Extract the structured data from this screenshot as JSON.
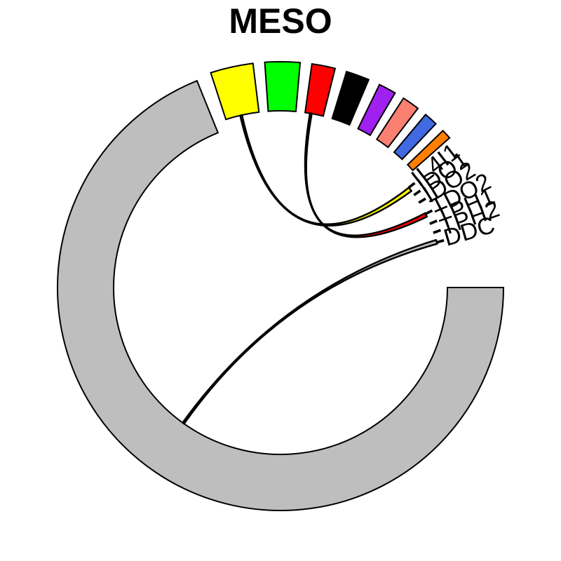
{
  "title": "MESO",
  "sectors": [
    {
      "name": "gray-main",
      "label": "",
      "color": "#BEBEBE"
    },
    {
      "name": "yellow",
      "label": "",
      "color": "#FFFF00"
    },
    {
      "name": "green",
      "label": "",
      "color": "#00FF00"
    },
    {
      "name": "red",
      "label": "",
      "color": "#FF0000"
    },
    {
      "name": "black",
      "label": "",
      "color": "#000000"
    },
    {
      "name": "purple",
      "label": "",
      "color": "#A020F0"
    },
    {
      "name": "salmon",
      "label": "",
      "color": "#FA8072"
    },
    {
      "name": "blue",
      "label": "",
      "color": "#4169E1"
    },
    {
      "name": "orange",
      "label": "",
      "color": "#FF7F00"
    },
    {
      "name": "IL4I1",
      "label": "IL4I1",
      "color": "#FFFF00"
    },
    {
      "name": "IDO1",
      "label": "IDO1",
      "color": "#FF0000"
    },
    {
      "name": "IDO2",
      "label": "IDO2",
      "color": "#FF0000"
    },
    {
      "name": "TDO2",
      "label": "TDO2",
      "color": "#FF0000"
    },
    {
      "name": "TPH1",
      "label": "TPH1",
      "color": "#BEBEBE"
    },
    {
      "name": "TPH2",
      "label": "TPH2",
      "color": "#BEBEBE"
    },
    {
      "name": "DDC",
      "label": "DDC",
      "color": "#BEBEBE"
    }
  ],
  "links": [
    {
      "from": "yellow",
      "to": "IL4I1",
      "color": "#FFFF00"
    },
    {
      "from": "red",
      "to": "TDO2",
      "color": "#FF0000"
    },
    {
      "from": "gray-main",
      "to": "DDC",
      "color": "#BEBEBE"
    }
  ]
}
